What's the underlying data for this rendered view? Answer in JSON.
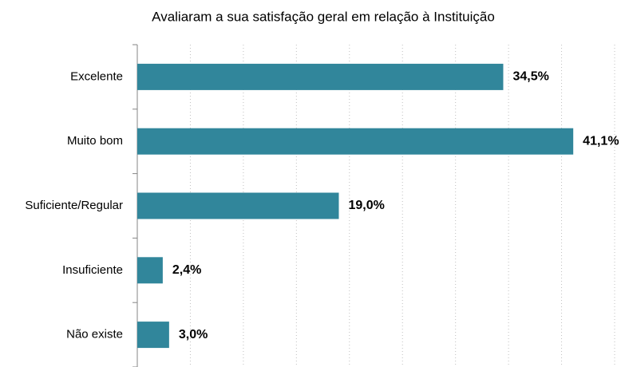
{
  "chart_data": {
    "type": "bar",
    "orientation": "horizontal",
    "title": "Avaliaram a sua satisfação geral em relação à Instituição",
    "categories": [
      "Excelente",
      "Muito bom",
      "Suficiente/Regular",
      "Insuficiente",
      "Não existe"
    ],
    "values": [
      34.5,
      41.1,
      19.0,
      2.4,
      3.0
    ],
    "value_labels": [
      "34,5%",
      "41,1%",
      "19,0%",
      "2,4%",
      "3,0%"
    ],
    "color": "#31869b",
    "xlim": [
      0,
      45
    ],
    "xticks": [
      0,
      5,
      10,
      15,
      20,
      25,
      30,
      35,
      40,
      45
    ],
    "grid": true
  }
}
